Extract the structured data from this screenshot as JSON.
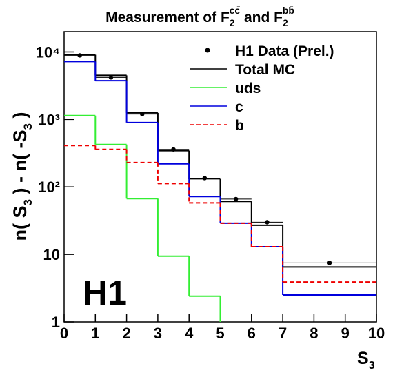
{
  "chart_data": {
    "type": "histogram",
    "title": [
      "Measurement of F",
      "2",
      "cc̄",
      " and F",
      "2",
      "bb̄"
    ],
    "x_label": [
      "S",
      "3"
    ],
    "y_label": [
      "n( S",
      "3",
      " ) - n( -S",
      "3",
      " )"
    ],
    "annotation": "H1",
    "bins": [
      0,
      1,
      2,
      3,
      4,
      5,
      6,
      7,
      10
    ],
    "series": [
      {
        "name": "H1 Data (Prel.)",
        "style": "points",
        "color": "#000000",
        "values": [
          8900,
          4200,
          1200,
          360,
          135,
          66,
          30,
          7.5
        ]
      },
      {
        "name": "Total MC",
        "style": "solid",
        "color": "#000000",
        "values": [
          9100,
          4500,
          1250,
          345,
          132,
          61,
          27,
          6.5
        ]
      },
      {
        "name": "uds",
        "style": "solid",
        "color": "#33ee33",
        "values": [
          1140,
          425,
          67,
          9.4,
          2.4,
          null,
          null,
          null
        ]
      },
      {
        "name": "c",
        "style": "solid",
        "color": "#0000dd",
        "values": [
          7200,
          3750,
          900,
          220,
          72,
          29,
          13,
          2.5
        ]
      },
      {
        "name": "b",
        "style": "dashed",
        "color": "#ee0000",
        "values": [
          410,
          360,
          230,
          112,
          58,
          29,
          13,
          3.9
        ]
      }
    ],
    "xlim": [
      0,
      10
    ],
    "xticks": [
      0,
      1,
      2,
      3,
      4,
      5,
      6,
      7,
      8,
      9,
      10
    ],
    "ylim": [
      1,
      20000
    ],
    "yticks": [
      1,
      10,
      {
        "value": 100,
        "label": "10²"
      },
      {
        "value": 1000,
        "label": "10³"
      },
      {
        "value": 10000,
        "label": "10⁴"
      }
    ],
    "log_y": true,
    "grid": false,
    "legend": "upper right"
  }
}
